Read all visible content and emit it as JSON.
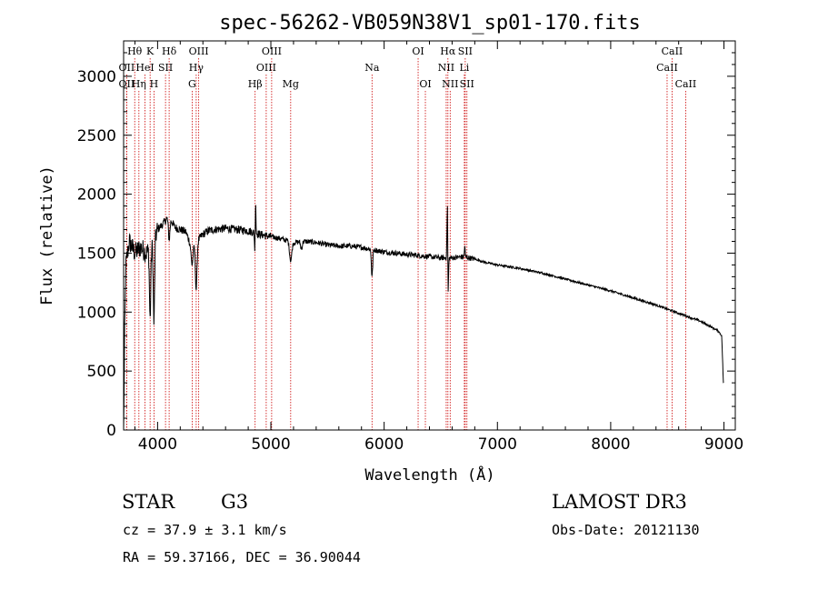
{
  "chart_data": {
    "type": "line",
    "title": "spec-56262-VB059N38V1_sp01-170.fits",
    "xlabel": "Wavelength (Å)",
    "ylabel": "Flux (relative)",
    "xlim": [
      3700,
      9100
    ],
    "ylim": [
      0,
      3300
    ],
    "x_ticks": [
      4000,
      5000,
      6000,
      7000,
      8000,
      9000
    ],
    "y_ticks": [
      0,
      500,
      1000,
      1500,
      2000,
      2500,
      3000
    ],
    "line_color": "#000000",
    "marker_color": "#cc0000",
    "spectral_lines": [
      {
        "label": "Hθ",
        "wavelength": 3798,
        "row": 0
      },
      {
        "label": "OII",
        "wavelength": 3727,
        "row": 1
      },
      {
        "label": "OII",
        "wavelength": 3727,
        "row": 2
      },
      {
        "label": "Hη",
        "wavelength": 3835,
        "row": 2
      },
      {
        "label": "HeI",
        "wavelength": 3889,
        "row": 1
      },
      {
        "label": "K",
        "wavelength": 3934,
        "row": 0
      },
      {
        "label": "H",
        "wavelength": 3968,
        "row": 2
      },
      {
        "label": "SII",
        "wavelength": 4070,
        "row": 1
      },
      {
        "label": "Hδ",
        "wavelength": 4102,
        "row": 0
      },
      {
        "label": "G",
        "wavelength": 4305,
        "row": 2
      },
      {
        "label": "Hγ",
        "wavelength": 4341,
        "row": 1
      },
      {
        "label": "OIII",
        "wavelength": 4363,
        "row": 0
      },
      {
        "label": "Hβ",
        "wavelength": 4861,
        "row": 2
      },
      {
        "label": "OIII",
        "wavelength": 4959,
        "row": 1
      },
      {
        "label": "OIII",
        "wavelength": 5007,
        "row": 0
      },
      {
        "label": "Mg",
        "wavelength": 5175,
        "row": 2
      },
      {
        "label": "Na",
        "wavelength": 5893,
        "row": 1
      },
      {
        "label": "OI",
        "wavelength": 6300,
        "row": 0
      },
      {
        "label": "OI",
        "wavelength": 6364,
        "row": 2
      },
      {
        "label": "NII",
        "wavelength": 6548,
        "row": 1
      },
      {
        "label": "Hα",
        "wavelength": 6563,
        "row": 0
      },
      {
        "label": "NII",
        "wavelength": 6583,
        "row": 2
      },
      {
        "label": "SII",
        "wavelength": 6716,
        "row": 0
      },
      {
        "label": "Li",
        "wavelength": 6708,
        "row": 1
      },
      {
        "label": "SII",
        "wavelength": 6731,
        "row": 2
      },
      {
        "label": "CaII",
        "wavelength": 8498,
        "row": 1
      },
      {
        "label": "CaII",
        "wavelength": 8542,
        "row": 0
      },
      {
        "label": "CaII",
        "wavelength": 8662,
        "row": 2
      }
    ],
    "spectrum_anchors": [
      [
        3700,
        0
      ],
      [
        3705,
        600
      ],
      [
        3720,
        1400
      ],
      [
        3750,
        1600
      ],
      [
        3800,
        1500
      ],
      [
        3850,
        1550
      ],
      [
        3900,
        1500
      ],
      [
        3950,
        1550
      ],
      [
        4000,
        1700
      ],
      [
        4050,
        1750
      ],
      [
        4100,
        1820
      ],
      [
        4150,
        1720
      ],
      [
        4200,
        1700
      ],
      [
        4250,
        1680
      ],
      [
        4300,
        1550
      ],
      [
        4350,
        1600
      ],
      [
        4400,
        1660
      ],
      [
        4450,
        1690
      ],
      [
        4500,
        1700
      ],
      [
        4600,
        1710
      ],
      [
        4700,
        1700
      ],
      [
        4800,
        1690
      ],
      [
        4900,
        1660
      ],
      [
        5000,
        1640
      ],
      [
        5100,
        1620
      ],
      [
        5200,
        1590
      ],
      [
        5300,
        1600
      ],
      [
        5400,
        1590
      ],
      [
        5500,
        1570
      ],
      [
        5600,
        1560
      ],
      [
        5700,
        1560
      ],
      [
        5800,
        1550
      ],
      [
        5900,
        1530
      ],
      [
        6000,
        1510
      ],
      [
        6100,
        1500
      ],
      [
        6200,
        1490
      ],
      [
        6300,
        1480
      ],
      [
        6400,
        1470
      ],
      [
        6500,
        1460
      ],
      [
        6600,
        1460
      ],
      [
        6700,
        1470
      ],
      [
        6800,
        1450
      ],
      [
        6900,
        1420
      ],
      [
        7000,
        1400
      ],
      [
        7200,
        1370
      ],
      [
        7400,
        1330
      ],
      [
        7600,
        1280
      ],
      [
        7800,
        1230
      ],
      [
        8000,
        1180
      ],
      [
        8200,
        1120
      ],
      [
        8400,
        1060
      ],
      [
        8600,
        990
      ],
      [
        8800,
        920
      ],
      [
        8950,
        840
      ],
      [
        8980,
        800
      ],
      [
        8995,
        400
      ],
      [
        9000,
        400
      ]
    ],
    "absorption_features": [
      [
        3934,
        600,
        8
      ],
      [
        3968,
        700,
        8
      ],
      [
        4102,
        200,
        10
      ],
      [
        4305,
        150,
        12
      ],
      [
        4341,
        400,
        10
      ],
      [
        4861,
        200,
        6
      ],
      [
        5175,
        160,
        14
      ],
      [
        5270,
        60,
        10
      ],
      [
        5893,
        230,
        8
      ],
      [
        6563,
        420,
        6
      ]
    ],
    "emission_features": [
      [
        4865,
        420,
        4
      ],
      [
        6558,
        450,
        5
      ],
      [
        6560,
        300,
        3
      ],
      [
        6712,
        100,
        4
      ]
    ]
  },
  "info": {
    "object_class": "STAR",
    "subclass": "G3",
    "survey": "LAMOST DR3",
    "redshift_line": "cz = 37.9 ± 3.1 km/s",
    "obs_date_line": "Obs-Date: 20121130",
    "coords_line": "RA =  59.37166, DEC =  36.90044"
  }
}
